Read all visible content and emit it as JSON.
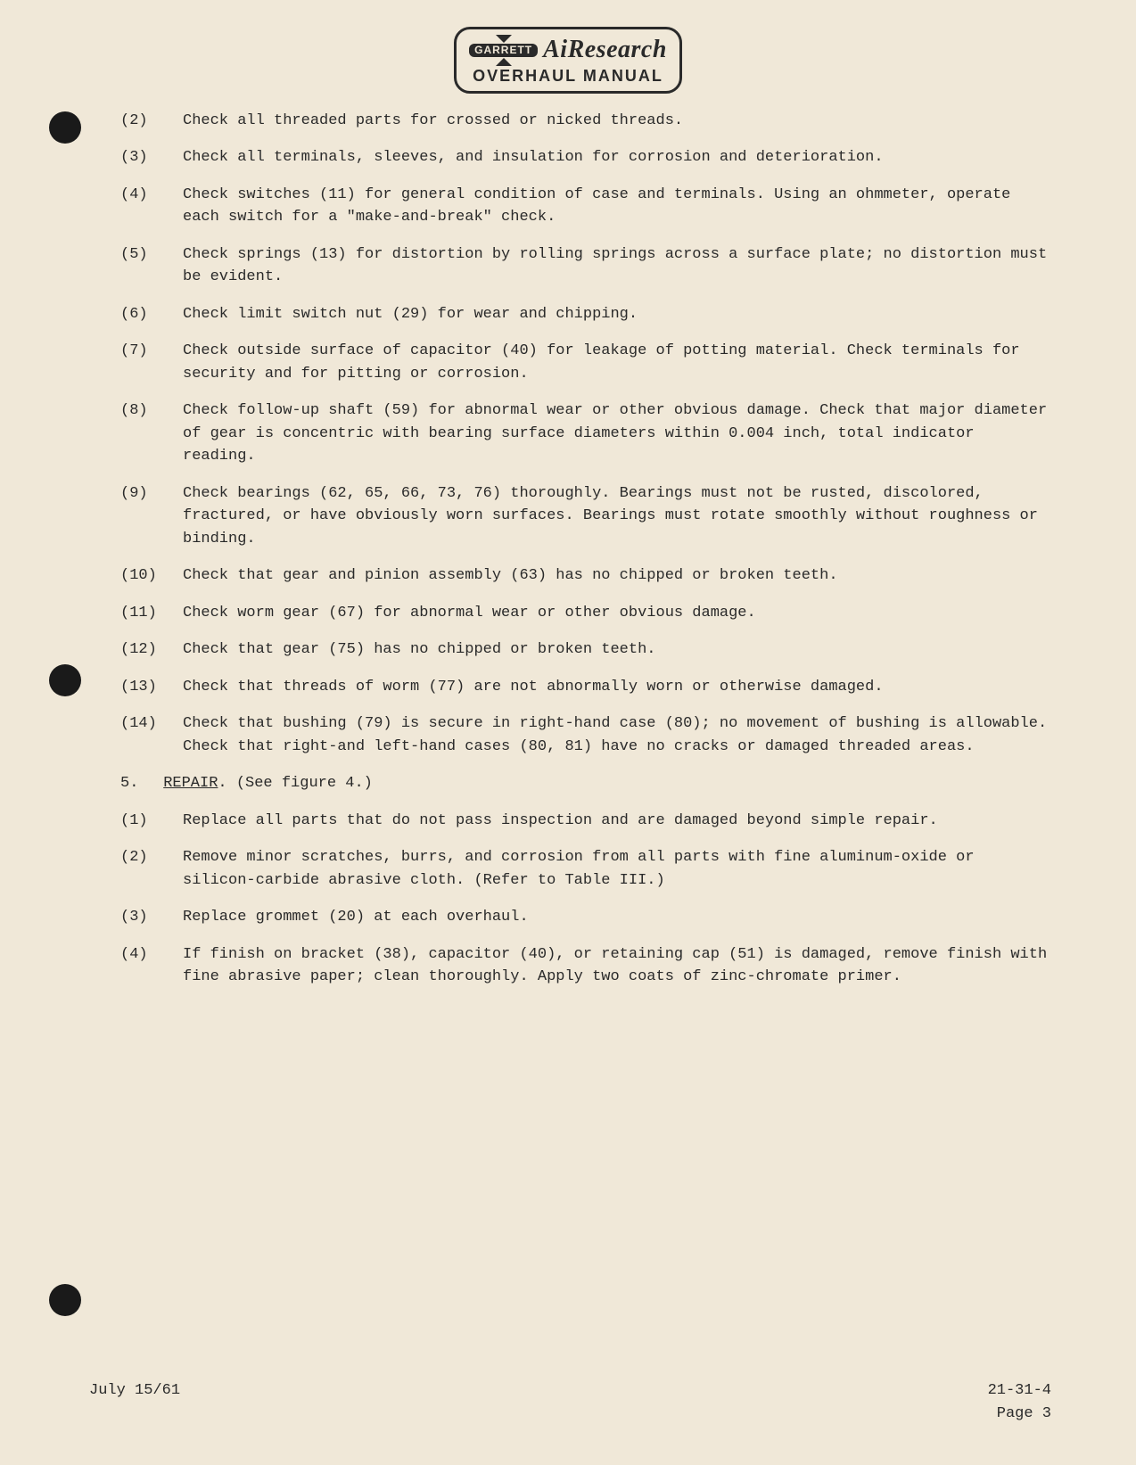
{
  "logo": {
    "garrett": "GARRETT",
    "brand": "AiResearch",
    "subtitle": "OVERHAUL MANUAL"
  },
  "checks": [
    {
      "n": "(2)",
      "t": "Check all threaded parts for crossed or nicked threads."
    },
    {
      "n": "(3)",
      "t": "Check all terminals, sleeves, and insulation for corrosion and deteriora­tion."
    },
    {
      "n": "(4)",
      "t": "Check switches (11) for general condition of case and terminals.  Using an ohmmeter, operate each switch for a \"make-and-break\" check."
    },
    {
      "n": "(5)",
      "t": "Check springs (13) for distortion by rolling springs across a surface plate; no distortion must be evident."
    },
    {
      "n": "(6)",
      "t": "Check limit switch nut (29) for wear and chipping."
    },
    {
      "n": "(7)",
      "t": "Check outside surface of capacitor (40) for leakage of potting material.  Check terminals for security and for pitting or corrosion."
    },
    {
      "n": "(8)",
      "t": "Check follow-up shaft (59) for abnormal wear or other obvious damage.  Check that major diameter of gear is concentric with bearing surface dia­meters within 0.004 inch, total indicator reading."
    },
    {
      "n": "(9)",
      "t": "Check bearings (62, 65, 66, 73, 76) thoroughly.  Bearings must not be rusted, discolored, fractured, or have obviously worn surfaces.  Bearings must rotate smoothly without roughness or binding."
    },
    {
      "n": "(10)",
      "t": "Check that gear and pinion assembly (63) has no chipped or broken teeth."
    },
    {
      "n": "(11)",
      "t": "Check worm gear (67) for abnormal wear or other obvious damage."
    },
    {
      "n": "(12)",
      "t": "Check that gear (75) has no chipped or broken teeth."
    },
    {
      "n": "(13)",
      "t": "Check that threads of worm (77) are not abnormally worn or otherwise damaged."
    },
    {
      "n": "(14)",
      "t": "Check that bushing (79) is secure in right-hand case (80); no movement of bushing is allowable.  Check that right-and left-hand cases (80, 81) have no cracks or damaged threaded areas."
    }
  ],
  "section": {
    "num": "5.",
    "title": "REPAIR",
    "note": "(See figure 4.)"
  },
  "repairs": [
    {
      "n": "(1)",
      "t": "Replace all parts that do not pass inspection and are damaged beyond simple repair."
    },
    {
      "n": "(2)",
      "t": "Remove minor scratches, burrs, and corrosion from all parts with fine aluminum-oxide or silicon-carbide abrasive cloth.  (Refer to Table III.)"
    },
    {
      "n": "(3)",
      "t": "Replace grommet (20) at each overhaul."
    },
    {
      "n": "(4)",
      "t": "If finish on bracket (38), capacitor (40), or retaining cap (51) is dam­aged, remove finish with fine abrasive paper; clean thoroughly.  Apply two coats of zinc-chromate primer."
    }
  ],
  "footer": {
    "date": "July 15/61",
    "doc": "21-31-4",
    "page": "Page 3"
  }
}
